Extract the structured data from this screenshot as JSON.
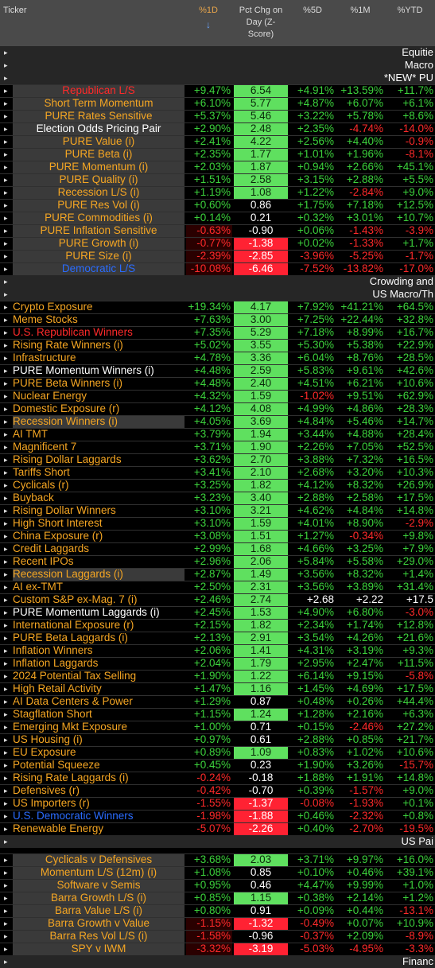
{
  "colors": {
    "orange": "#f5a623",
    "red": "#ff2a2a",
    "white": "#ffffff",
    "blue": "#2a6cff",
    "green": "#3cd23c",
    "zpos": "#5fe05f",
    "zneg": "#ff2233",
    "neutral": "#ffffff"
  },
  "header": {
    "ticker": "Ticker",
    "c1": "%1D",
    "c1_arrow": "↓",
    "c2": "Pct Chg on Day (Z-Score)",
    "c3": "%5D",
    "c4": "%1M",
    "c5": "%YTD"
  },
  "sections": [
    {
      "label": "Equitie"
    },
    {
      "label": "Macro"
    },
    {
      "label": "*NEW* PU"
    },
    {
      "label": "Crowding and"
    },
    {
      "label": "US Macro/Th"
    },
    {
      "label": "US Pai"
    },
    {
      "label": "Financ"
    }
  ],
  "group1": [
    {
      "name": "Republican L/S",
      "v1": "+9.47%",
      "z": "6.54",
      "v5": "+4.91%",
      "v1m": "+13.59%",
      "ytd": "+11.7%"
    },
    {
      "name": "Short Term Momentum",
      "v1": "+6.10%",
      "z": "5.77",
      "v5": "+4.87%",
      "v1m": "+6.07%",
      "ytd": "+6.1%"
    },
    {
      "name": "PURE Rates Sensitive",
      "v1": "+5.37%",
      "z": "5.46",
      "v5": "+3.22%",
      "v1m": "+5.78%",
      "ytd": "+8.6%"
    },
    {
      "name": "Election Odds Pricing Pair",
      "v1": "+2.90%",
      "z": "2.48",
      "v5": "+2.35%",
      "v1m": "-4.74%",
      "ytd": "-14.0%"
    },
    {
      "name": "PURE Value (i)",
      "v1": "+2.41%",
      "z": "4.22",
      "v5": "+2.56%",
      "v1m": "+4.40%",
      "ytd": "-0.9%"
    },
    {
      "name": "PURE Beta (i)",
      "v1": "+2.35%",
      "z": "1.77",
      "v5": "+1.01%",
      "v1m": "+1.96%",
      "ytd": "-8.1%"
    },
    {
      "name": "PURE Momentum (i)",
      "v1": "+2.03%",
      "z": "1.87",
      "v5": "+0.94%",
      "v1m": "+2.66%",
      "ytd": "+45.1%"
    },
    {
      "name": "PURE Quality (i)",
      "v1": "+1.51%",
      "z": "2.58",
      "v5": "+3.15%",
      "v1m": "+2.88%",
      "ytd": "+5.5%"
    },
    {
      "name": "Recession L/S (i)",
      "v1": "+1.19%",
      "z": "1.08",
      "v5": "+1.22%",
      "v1m": "-2.84%",
      "ytd": "+9.0%"
    },
    {
      "name": "PURE Res Vol (i)",
      "v1": "+0.60%",
      "z": "0.86",
      "v5": "+1.75%",
      "v1m": "+7.18%",
      "ytd": "+12.5%"
    },
    {
      "name": "PURE Commodities (i)",
      "v1": "+0.14%",
      "z": "0.21",
      "v5": "+0.32%",
      "v1m": "+3.01%",
      "ytd": "+10.7%"
    },
    {
      "name": "PURE Inflation Sensitive",
      "v1": "-0.63%",
      "z": "-0.90",
      "v5": "+0.06%",
      "v1m": "-1.43%",
      "ytd": "-3.9%"
    },
    {
      "name": "PURE Growth (i)",
      "v1": "-0.77%",
      "z": "-1.38",
      "v5": "+0.02%",
      "v1m": "-1.33%",
      "ytd": "+1.7%"
    },
    {
      "name": "PURE Size (i)",
      "v1": "-2.39%",
      "z": "-2.85",
      "v5": "-3.96%",
      "v1m": "-5.25%",
      "ytd": "-1.7%"
    },
    {
      "name": "Democratic L/S",
      "v1": "-10.08%",
      "z": "-6.46",
      "v5": "-7.52%",
      "v1m": "-13.82%",
      "ytd": "-17.0%"
    }
  ],
  "group2": [
    {
      "name": "Crypto Exposure",
      "v1": "+19.34%",
      "z": "4.17",
      "v5": "+7.92%",
      "v1m": "+41.21%",
      "ytd": "+64.5%"
    },
    {
      "name": "Meme Stocks",
      "v1": "+7.63%",
      "z": "3.00",
      "v5": "+7.25%",
      "v1m": "+22.44%",
      "ytd": "+32.8%"
    },
    {
      "name": "U.S. Republican Winners",
      "v1": "+7.35%",
      "z": "5.29",
      "v5": "+7.18%",
      "v1m": "+8.99%",
      "ytd": "+16.7%"
    },
    {
      "name": "Rising Rate Winners (i)",
      "v1": "+5.02%",
      "z": "3.55",
      "v5": "+5.30%",
      "v1m": "+5.38%",
      "ytd": "+22.9%"
    },
    {
      "name": "Infrastructure",
      "v1": "+4.78%",
      "z": "3.36",
      "v5": "+6.04%",
      "v1m": "+8.76%",
      "ytd": "+28.5%"
    },
    {
      "name": "PURE Momentum Winners (i)",
      "v1": "+4.48%",
      "z": "2.59",
      "v5": "+5.83%",
      "v1m": "+9.61%",
      "ytd": "+42.6%"
    },
    {
      "name": "PURE Beta Winners (i)",
      "v1": "+4.48%",
      "z": "2.40",
      "v5": "+4.51%",
      "v1m": "+6.21%",
      "ytd": "+10.6%"
    },
    {
      "name": "Nuclear Energy",
      "v1": "+4.32%",
      "z": "1.59",
      "v5": "-1.02%",
      "v1m": "+9.51%",
      "ytd": "+62.9%"
    },
    {
      "name": "Domestic Exposure (r)",
      "v1": "+4.12%",
      "z": "4.08",
      "v5": "+4.99%",
      "v1m": "+4.86%",
      "ytd": "+28.3%"
    },
    {
      "name": "Recession Winners (i)",
      "v1": "+4.05%",
      "z": "3.69",
      "v5": "+4.84%",
      "v1m": "+5.46%",
      "ytd": "+14.7%"
    },
    {
      "name": "AI TMT",
      "v1": "+3.79%",
      "z": "1.94",
      "v5": "+3.44%",
      "v1m": "+4.88%",
      "ytd": "+28.4%"
    },
    {
      "name": "Magnificent 7",
      "v1": "+3.71%",
      "z": "1.90",
      "v5": "+2.26%",
      "v1m": "+7.05%",
      "ytd": "+52.5%"
    },
    {
      "name": "Rising Dollar Laggards",
      "v1": "+3.62%",
      "z": "2.70",
      "v5": "+3.88%",
      "v1m": "+7.32%",
      "ytd": "+16.5%"
    },
    {
      "name": "Tariffs Short",
      "v1": "+3.41%",
      "z": "2.10",
      "v5": "+2.68%",
      "v1m": "+3.20%",
      "ytd": "+10.3%"
    },
    {
      "name": "Cyclicals (r)",
      "v1": "+3.25%",
      "z": "1.82",
      "v5": "+4.12%",
      "v1m": "+8.32%",
      "ytd": "+26.9%"
    },
    {
      "name": "Buyback",
      "v1": "+3.23%",
      "z": "3.40",
      "v5": "+2.88%",
      "v1m": "+2.58%",
      "ytd": "+17.5%"
    },
    {
      "name": "Rising Dollar Winners",
      "v1": "+3.10%",
      "z": "3.21",
      "v5": "+4.62%",
      "v1m": "+4.84%",
      "ytd": "+14.8%"
    },
    {
      "name": "High Short Interest",
      "v1": "+3.10%",
      "z": "1.59",
      "v5": "+4.01%",
      "v1m": "+8.90%",
      "ytd": "-2.9%"
    },
    {
      "name": "China Exposure (r)",
      "v1": "+3.08%",
      "z": "1.51",
      "v5": "+1.27%",
      "v1m": "-0.34%",
      "ytd": "+9.8%"
    },
    {
      "name": "Credit Laggards",
      "v1": "+2.99%",
      "z": "1.68",
      "v5": "+4.66%",
      "v1m": "+3.25%",
      "ytd": "+7.9%"
    },
    {
      "name": "Recent IPOs",
      "v1": "+2.96%",
      "z": "2.06",
      "v5": "+5.84%",
      "v1m": "+5.58%",
      "ytd": "+29.0%"
    },
    {
      "name": "Recession Laggards (i)",
      "v1": "+2.87%",
      "z": "1.49",
      "v5": "+3.56%",
      "v1m": "+8.32%",
      "ytd": "+1.4%"
    },
    {
      "name": "AI ex-TMT",
      "v1": "+2.50%",
      "z": "2.31",
      "v5": "+3.56%",
      "v1m": "+3.89%",
      "ytd": "+31.4%"
    },
    {
      "name": "Custom S&P ex-Mag. 7 (i)",
      "v1": "+2.46%",
      "z": "2.74",
      "v5": "+2.68",
      "v1m": "+2.22",
      "ytd": "+17.5"
    },
    {
      "name": "PURE Momentum Laggards (i)",
      "v1": "+2.45%",
      "z": "1.53",
      "v5": "+4.90%",
      "v1m": "+6.80%",
      "ytd": "-3.0%"
    },
    {
      "name": "International Exposure (r)",
      "v1": "+2.15%",
      "z": "1.82",
      "v5": "+2.34%",
      "v1m": "+1.74%",
      "ytd": "+12.8%"
    },
    {
      "name": "PURE Beta Laggards (i)",
      "v1": "+2.13%",
      "z": "2.91",
      "v5": "+3.54%",
      "v1m": "+4.26%",
      "ytd": "+21.6%"
    },
    {
      "name": "Inflation Winners",
      "v1": "+2.06%",
      "z": "1.41",
      "v5": "+4.31%",
      "v1m": "+3.19%",
      "ytd": "+9.3%"
    },
    {
      "name": "Inflation Laggards",
      "v1": "+2.04%",
      "z": "1.79",
      "v5": "+2.95%",
      "v1m": "+2.47%",
      "ytd": "+11.5%"
    },
    {
      "name": "2024 Potential Tax Selling",
      "v1": "+1.90%",
      "z": "1.22",
      "v5": "+6.14%",
      "v1m": "+9.15%",
      "ytd": "-5.8%"
    },
    {
      "name": "High Retail Activity",
      "v1": "+1.47%",
      "z": "1.16",
      "v5": "+1.45%",
      "v1m": "+4.69%",
      "ytd": "+17.5%"
    },
    {
      "name": "AI Data Centers & Power",
      "v1": "+1.29%",
      "z": "0.87",
      "v5": "+0.48%",
      "v1m": "+0.26%",
      "ytd": "+44.4%"
    },
    {
      "name": "Stagflation Short",
      "v1": "+1.15%",
      "z": "1.24",
      "v5": "+1.28%",
      "v1m": "+2.16%",
      "ytd": "+6.3%"
    },
    {
      "name": "Emerging Mkt Exposure",
      "v1": "+1.00%",
      "z": "0.71",
      "v5": "+0.15%",
      "v1m": "-2.46%",
      "ytd": "+27.2%"
    },
    {
      "name": "US Housing (i)",
      "v1": "+0.97%",
      "z": "0.61",
      "v5": "+2.88%",
      "v1m": "+0.85%",
      "ytd": "+21.7%"
    },
    {
      "name": "EU Exposure",
      "v1": "+0.89%",
      "z": "1.09",
      "v5": "+0.83%",
      "v1m": "+1.02%",
      "ytd": "+10.6%"
    },
    {
      "name": "Potential Squeeze",
      "v1": "+0.45%",
      "z": "0.23",
      "v5": "+1.90%",
      "v1m": "+3.26%",
      "ytd": "-15.7%"
    },
    {
      "name": "Rising Rate Laggards (i)",
      "v1": "-0.24%",
      "z": "-0.18",
      "v5": "+1.88%",
      "v1m": "+1.91%",
      "ytd": "+14.8%"
    },
    {
      "name": "Defensives (r)",
      "v1": "-0.42%",
      "z": "-0.70",
      "v5": "+0.39%",
      "v1m": "-1.57%",
      "ytd": "+9.0%"
    },
    {
      "name": "US Importers (r)",
      "v1": "-1.55%",
      "z": "-1.37",
      "v5": "-0.08%",
      "v1m": "-1.93%",
      "ytd": "+0.1%"
    },
    {
      "name": "U.S. Democratic Winners",
      "v1": "-1.98%",
      "z": "-1.88",
      "v5": "+0.46%",
      "v1m": "-2.32%",
      "ytd": "+0.8%"
    },
    {
      "name": "Renewable Energy",
      "v1": "-5.07%",
      "z": "-2.26",
      "v5": "+0.40%",
      "v1m": "-2.70%",
      "ytd": "-19.5%"
    }
  ],
  "group3": [
    {
      "name": "Cyclicals v Defensives",
      "v1": "+3.68%",
      "z": "2.03",
      "v5": "+3.71%",
      "v1m": "+9.97%",
      "ytd": "+16.0%"
    },
    {
      "name": "Momentum L/S (12m) (i)",
      "v1": "+1.08%",
      "z": "0.85",
      "v5": "+0.10%",
      "v1m": "+0.46%",
      "ytd": "+39.1%"
    },
    {
      "name": "Software v Semis",
      "v1": "+0.95%",
      "z": "0.46",
      "v5": "+4.47%",
      "v1m": "+9.99%",
      "ytd": "+1.0%"
    },
    {
      "name": "Barra Growth L/S (i)",
      "v1": "+0.85%",
      "z": "1.15",
      "v5": "+0.38%",
      "v1m": "+2.14%",
      "ytd": "+1.2%"
    },
    {
      "name": "Barra Value L/S (i)",
      "v1": "+0.80%",
      "z": "0.91",
      "v5": "+0.09%",
      "v1m": "+0.44%",
      "ytd": "-13.1%"
    },
    {
      "name": "Barra Growth v Value",
      "v1": "-1.15%",
      "z": "-1.32",
      "v5": "-0.49%",
      "v1m": "+0.07%",
      "ytd": "+10.9%"
    },
    {
      "name": "Barra Res Vol L/S (i)",
      "v1": "-1.58%",
      "z": "-0.96",
      "v5": "-0.37%",
      "v1m": "+2.09%",
      "ytd": "-8.9%"
    },
    {
      "name": "SPY v IWM",
      "v1": "-3.32%",
      "z": "-3.19",
      "v5": "-5.03%",
      "v1m": "-4.95%",
      "ytd": "-3.3%"
    }
  ]
}
